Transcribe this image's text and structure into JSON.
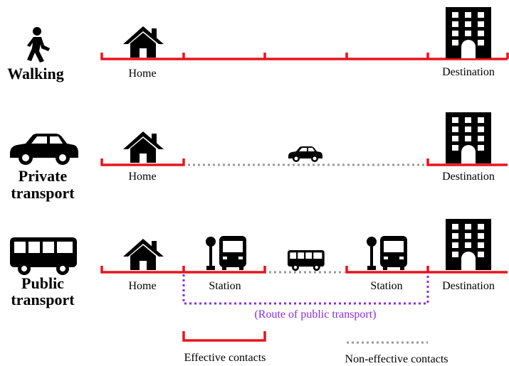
{
  "modes": [
    {
      "label": [
        "Walking"
      ],
      "points": [
        "Home",
        "Destination"
      ]
    },
    {
      "label": [
        "Private",
        "transport"
      ],
      "points": [
        "Home",
        "Destination"
      ]
    },
    {
      "label": [
        "Public",
        "transport"
      ],
      "points": [
        "Home",
        "Station",
        "Station",
        "Destination"
      ],
      "route": "(Route of public transport)"
    }
  ],
  "legend": {
    "effective": "Effective contacts",
    "non_effective": "Non-effective contacts"
  }
}
